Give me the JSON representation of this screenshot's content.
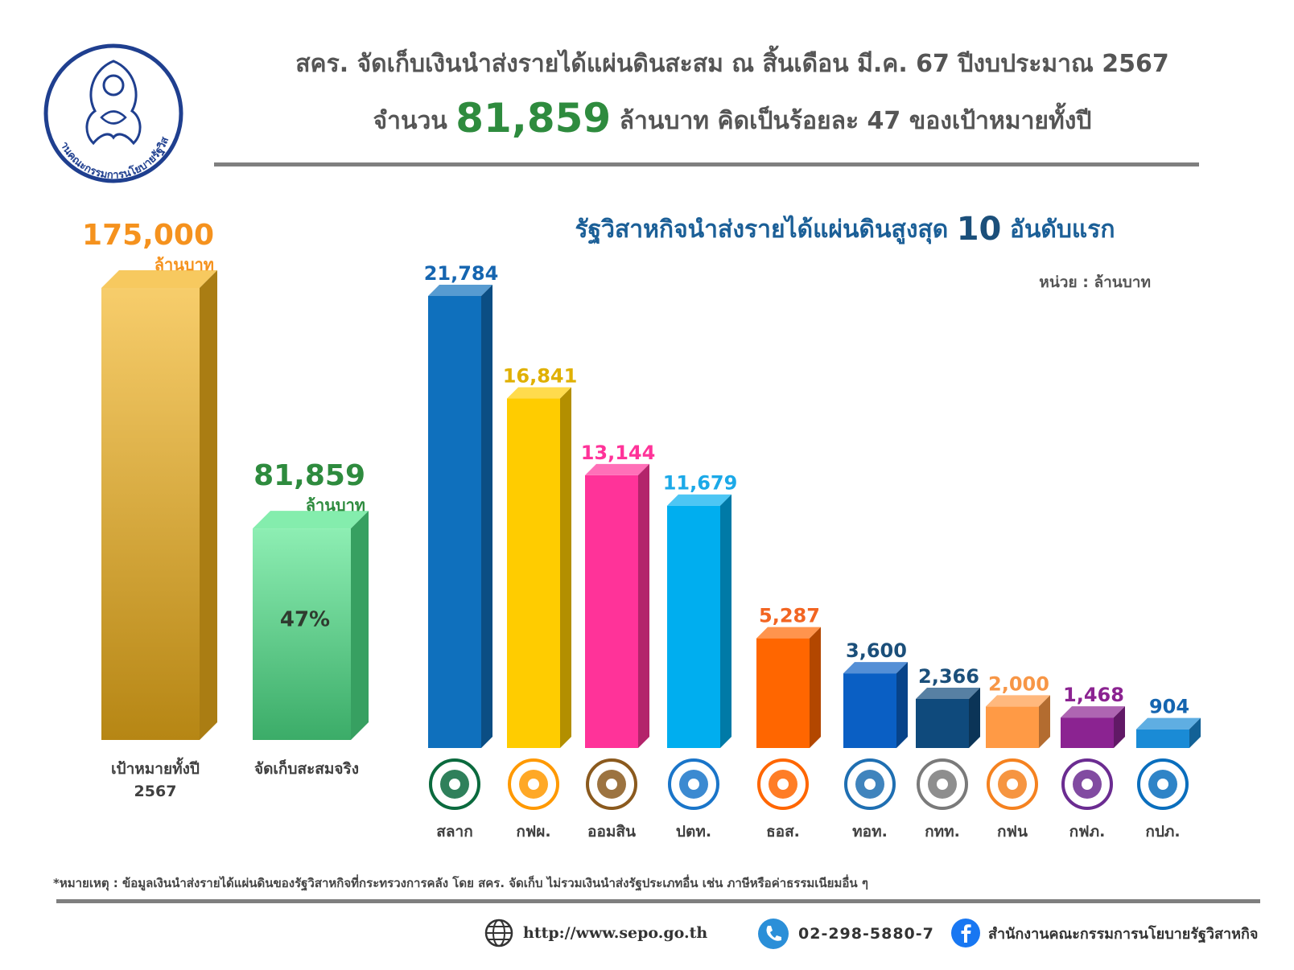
{
  "header": {
    "line1": "สคร. จัดเก็บเงินนำส่งรายได้แผ่นดินสะสม ณ สิ้นเดือน มี.ค. 67 ปีงบประมาณ 2567",
    "line2_prefix": "จำนวน",
    "line2_amount": "81,859",
    "line2_suffix": "ล้านบาท คิดเป็นร้อยละ 47 ของเป้าหมายทั้งปี"
  },
  "logo": {
    "text": "สำนักงานคณะกรรมการนโยบายรัฐวิสาหกิจ",
    "icon": "garuda-logo-icon"
  },
  "chart_data": [
    {
      "type": "bar",
      "categories": [
        "เป้าหมายทั้งปี 2567",
        "จัดเก็บสะสมจริง"
      ],
      "category_lines": [
        [
          "เป้าหมายทั้งปี",
          "2567"
        ],
        [
          "จัดเก็บสะสมจริง"
        ]
      ],
      "values": [
        175000,
        81859
      ],
      "value_labels": [
        "175,000",
        "81,859"
      ],
      "value_unit": "ล้านบาท",
      "inner_label": "47%",
      "colors": [
        "#f3b21b",
        "#4fe58a"
      ],
      "label_colors": [
        "#f5921e",
        "#2e8b3e"
      ]
    },
    {
      "type": "bar",
      "title_prefix": "รัฐวิสาหกิจนำส่งรายได้แผ่นดินสูงสุด",
      "title_number": "10",
      "title_suffix": "อันดับแรก",
      "unit_label": "หน่วย : ล้านบาท",
      "categories": [
        "สลาก",
        "กฟผ.",
        "ออมสิน",
        "ปตท.",
        "ธอส.",
        "ทอท.",
        "กทท.",
        "กฟน",
        "กฟภ.",
        "กปภ."
      ],
      "values": [
        21784,
        16841,
        13144,
        11679,
        5287,
        3600,
        2366,
        2000,
        1468,
        904
      ],
      "value_labels": [
        "21,784",
        "16,841",
        "13,144",
        "11,679",
        "5,287",
        "3,600",
        "2,366",
        "2,000",
        "1,468",
        "904"
      ],
      "colors": [
        "#0f70bd",
        "#ffcc00",
        "#ff3399",
        "#00aeef",
        "#ff6600",
        "#0a5fc4",
        "#0f4a7c",
        "#ff9a45",
        "#8b2391",
        "#1a8bd6"
      ],
      "label_colors": [
        "#1565b0",
        "#e0b000",
        "#ff3399",
        "#1ba9e8",
        "#f26522",
        "#1b4f7a",
        "#1b4f7a",
        "#f79646",
        "#8b2391",
        "#1565b0"
      ],
      "logo_icons": [
        "lottery-logo-icon",
        "egat-logo-icon",
        "gsb-logo-icon",
        "ptt-logo-icon",
        "ghb-logo-icon",
        "aot-logo-icon",
        "pat-logo-icon",
        "mea-logo-icon",
        "pea-logo-icon",
        "pwa-logo-icon"
      ],
      "logo_colors": [
        "#0b6a3e",
        "#ff9900",
        "#8b5a1e",
        "#1a75c9",
        "#ff6600",
        "#1f6fb2",
        "#7a7a7a",
        "#f58220",
        "#6b2c91",
        "#0a6ebd"
      ]
    }
  ],
  "note": "*หมายเหตุ : ข้อมูลเงินนำส่งรายได้แผ่นดินของรัฐวิสาหกิจที่กระทรวงการคลัง โดย สคร. จัดเก็บ ไม่รวมเงินนำส่งรัฐประเภทอื่น เช่น ภาษีหรือค่าธรรมเนียมอื่น ๆ",
  "footer": {
    "website": "http://www.sepo.go.th",
    "phone": "02-298-5880-7",
    "facebook": "สำนักงานคณะกรรมการนโยบายรัฐวิสาหกิจ",
    "icons": [
      "globe-icon",
      "phone-icon",
      "facebook-icon"
    ]
  }
}
